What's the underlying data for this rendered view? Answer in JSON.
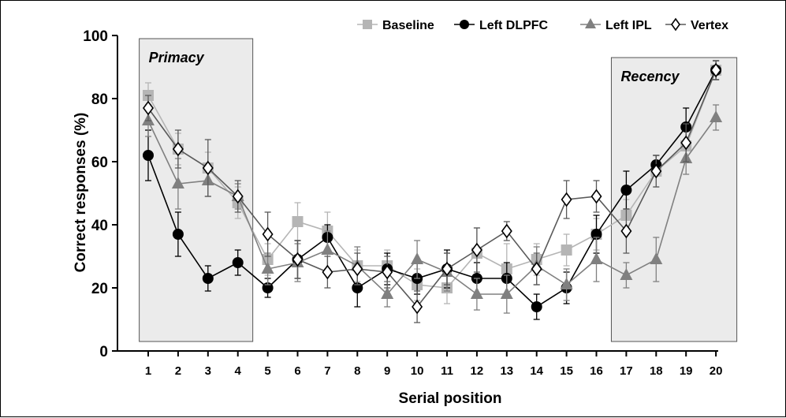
{
  "chart_data": {
    "type": "line",
    "xlabel": "Serial position",
    "ylabel": "Correct responses (%)",
    "ylim": [
      0,
      100
    ],
    "yticks": [
      "0",
      "20",
      "40",
      "60",
      "80",
      "100"
    ],
    "x": [
      1,
      2,
      3,
      4,
      5,
      6,
      7,
      8,
      9,
      10,
      11,
      12,
      13,
      14,
      15,
      16,
      17,
      18,
      19,
      20
    ],
    "xtick_labels": [
      "1",
      "2",
      "3",
      "4",
      "5",
      "6",
      "7",
      "8",
      "9",
      "10",
      "11",
      "12",
      "13",
      "14",
      "15",
      "16",
      "17",
      "18",
      "19",
      "20"
    ],
    "regions": [
      {
        "label": "Primacy",
        "x_range": [
          0.7,
          4.5
        ],
        "y_range": [
          3,
          99
        ]
      },
      {
        "label": "Recency",
        "x_range": [
          16.5,
          20.7
        ],
        "y_range": [
          3,
          93
        ]
      }
    ],
    "legend_position": "top-right",
    "series": [
      {
        "name": "Baseline",
        "color": "#b5b5b5",
        "marker": "square",
        "values": [
          81,
          64,
          58,
          47,
          29,
          41,
          38,
          27,
          27,
          21,
          20,
          31,
          26,
          29,
          32,
          37,
          43,
          57,
          65,
          89
        ],
        "errors": [
          4,
          5,
          5,
          5,
          5,
          6,
          6,
          5,
          5,
          5,
          5,
          8,
          8,
          5,
          5,
          5,
          5,
          5,
          5,
          3
        ]
      },
      {
        "name": "Left DLPFC",
        "color": "#000000",
        "marker": "circle",
        "values": [
          62,
          37,
          23,
          28,
          20,
          29,
          36,
          20,
          26,
          23,
          26,
          23,
          23,
          14,
          20,
          37,
          51,
          59,
          71,
          89
        ],
        "errors": [
          8,
          7,
          4,
          4,
          3,
          6,
          4,
          6,
          5,
          5,
          6,
          5,
          5,
          4,
          5,
          6,
          6,
          3,
          6,
          3
        ]
      },
      {
        "name": "Left IPL",
        "color": "#808080",
        "marker": "triangle",
        "values": [
          73,
          53,
          54,
          49,
          26,
          28,
          32,
          27,
          18,
          29,
          25,
          18,
          18,
          27,
          21,
          29,
          24,
          29,
          61,
          74
        ],
        "errors": [
          5,
          8,
          5,
          4,
          5,
          6,
          6,
          6,
          4,
          6,
          6,
          5,
          6,
          6,
          5,
          7,
          4,
          7,
          5,
          4
        ]
      },
      {
        "name": "Vertex",
        "color": "#5a5a5a",
        "marker": "diamond",
        "values": [
          77,
          64,
          58,
          49,
          37,
          29,
          25,
          26,
          25,
          14,
          26,
          32,
          38,
          26,
          48,
          49,
          38,
          57,
          66,
          89
        ],
        "errors": [
          4,
          6,
          9,
          5,
          7,
          6,
          5,
          5,
          5,
          5,
          5,
          7,
          3,
          5,
          6,
          5,
          7,
          5,
          6,
          3
        ]
      }
    ]
  }
}
